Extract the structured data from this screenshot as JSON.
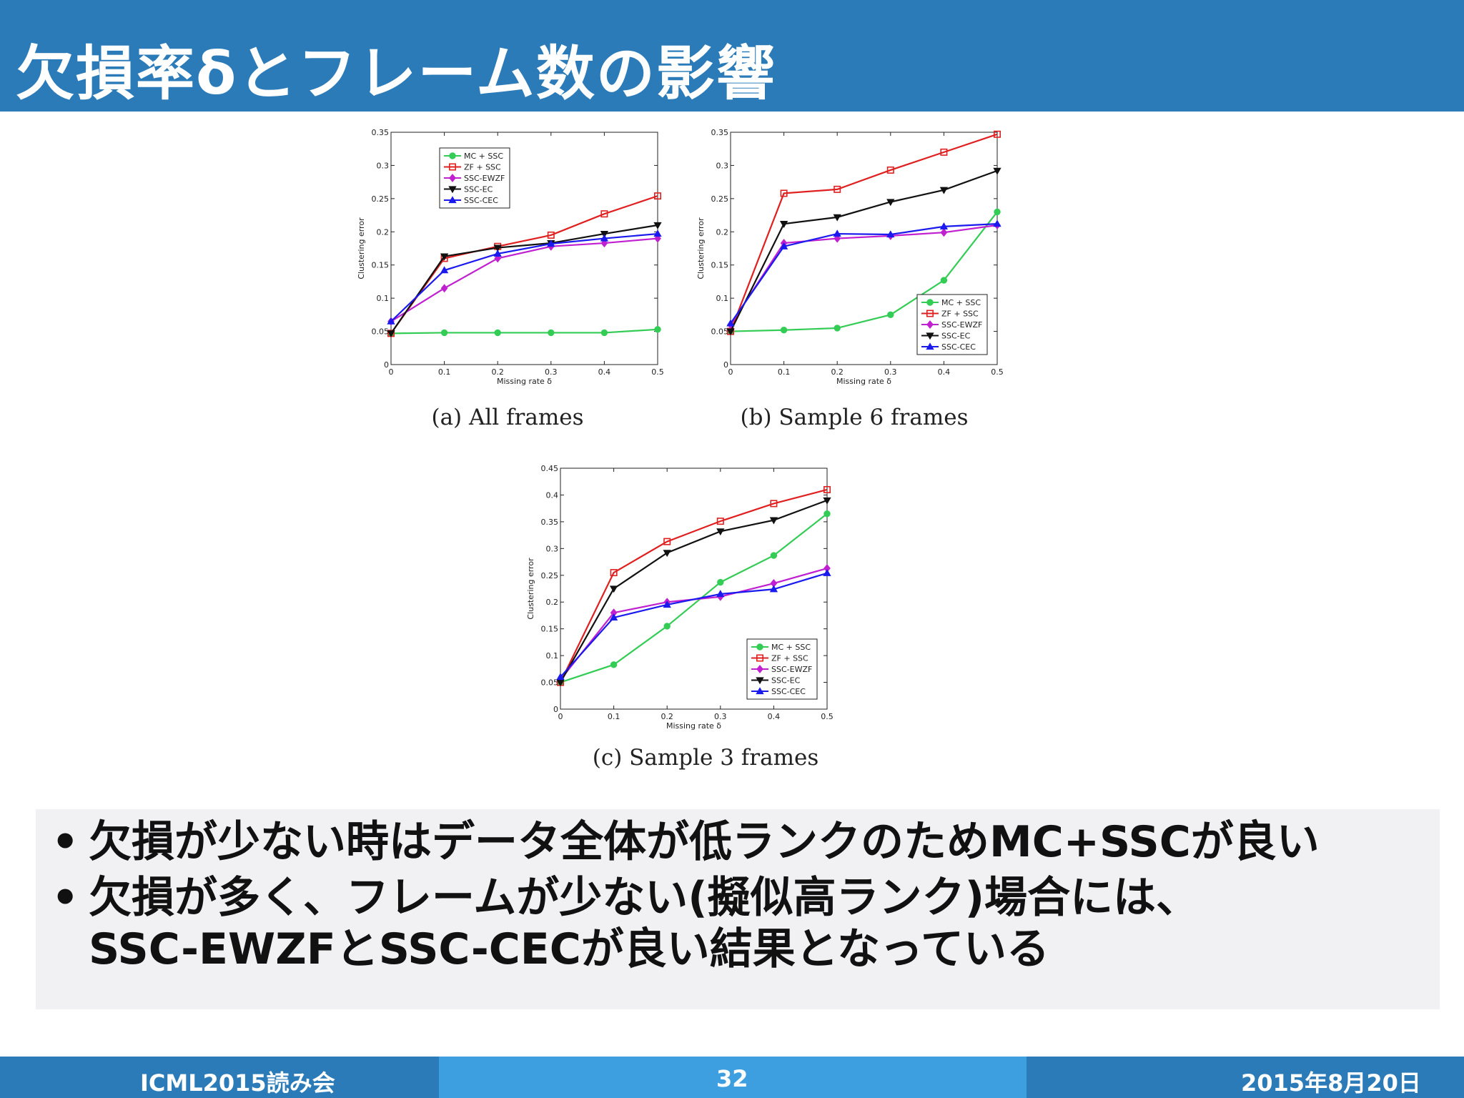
{
  "slide": {
    "title": "欠損率δとフレーム数の影響",
    "bullets": [
      "欠損が少ない時はデータ全体が低ランクのためMC+SSCが良い",
      "欠損が多く、フレームが少ない(擬似高ランク)場合には、"
    ],
    "bullet_continuation": "SSC-EWZFとSSC-CECが良い結果となっている",
    "bullet_marker": "•",
    "footer": {
      "left": "ICML2015読み会",
      "page": "32",
      "date": "2015年8月20日"
    }
  },
  "colors": {
    "title_bar": "#2b7bb9",
    "footer_mid": "#3d9ee0",
    "bullet_bg": "#f1f1f3"
  },
  "chart_data": [
    {
      "type": "line",
      "caption": "(a)  All frames",
      "xlabel": "Missing rate δ",
      "ylabel": "Clustering error",
      "x": [
        0,
        0.1,
        0.2,
        0.3,
        0.4,
        0.5
      ],
      "xticks": [
        "0",
        "0.1",
        "0.2",
        "0.3",
        "0.4",
        "0.5"
      ],
      "xlim": [
        0,
        0.5
      ],
      "ylim": [
        0,
        0.35
      ],
      "yticks": [
        "0",
        "0.05",
        "0.1",
        "0.15",
        "0.2",
        "0.25",
        "0.3",
        "0.35"
      ],
      "legend": "top-left",
      "series": [
        {
          "name": "MC + SSC",
          "color": "#33cc55",
          "marker": "circle",
          "values": [
            0.047,
            0.048,
            0.048,
            0.048,
            0.048,
            0.053
          ]
        },
        {
          "name": "ZF + SSC",
          "color": "#e02020",
          "marker": "square",
          "values": [
            0.047,
            0.16,
            0.178,
            0.195,
            0.227,
            0.254
          ]
        },
        {
          "name": "SSC-EWZF",
          "color": "#c020d0",
          "marker": "diamond",
          "values": [
            0.065,
            0.115,
            0.16,
            0.178,
            0.183,
            0.19
          ]
        },
        {
          "name": "SSC-EC",
          "color": "#111111",
          "marker": "triangle-down",
          "values": [
            0.047,
            0.163,
            0.176,
            0.183,
            0.197,
            0.21
          ]
        },
        {
          "name": "SSC-CEC",
          "color": "#1a1aee",
          "marker": "triangle-up",
          "values": [
            0.065,
            0.142,
            0.167,
            0.182,
            0.19,
            0.197
          ]
        }
      ]
    },
    {
      "type": "line",
      "caption": "(b)  Sample 6 frames",
      "xlabel": "Missing rate δ",
      "ylabel": "Clustering error",
      "x": [
        0,
        0.1,
        0.2,
        0.3,
        0.4,
        0.5
      ],
      "xticks": [
        "0",
        "0.1",
        "0.2",
        "0.3",
        "0.4",
        "0.5"
      ],
      "xlim": [
        0,
        0.5
      ],
      "ylim": [
        0,
        0.35
      ],
      "yticks": [
        "0",
        "0.05",
        "0.1",
        "0.15",
        "0.2",
        "0.25",
        "0.3",
        "0.35"
      ],
      "legend": "bottom-right",
      "series": [
        {
          "name": "MC + SSC",
          "color": "#33cc55",
          "marker": "circle",
          "values": [
            0.05,
            0.052,
            0.055,
            0.075,
            0.127,
            0.23
          ]
        },
        {
          "name": "ZF + SSC",
          "color": "#e02020",
          "marker": "square",
          "values": [
            0.05,
            0.258,
            0.264,
            0.293,
            0.32,
            0.347
          ]
        },
        {
          "name": "SSC-EWZF",
          "color": "#c020d0",
          "marker": "diamond",
          "values": [
            0.06,
            0.183,
            0.19,
            0.194,
            0.199,
            0.21
          ]
        },
        {
          "name": "SSC-EC",
          "color": "#111111",
          "marker": "triangle-down",
          "values": [
            0.05,
            0.212,
            0.222,
            0.245,
            0.263,
            0.292
          ]
        },
        {
          "name": "SSC-CEC",
          "color": "#1a1aee",
          "marker": "triangle-up",
          "values": [
            0.062,
            0.178,
            0.197,
            0.196,
            0.208,
            0.212
          ]
        }
      ]
    },
    {
      "type": "line",
      "caption": "(c)  Sample 3 frames",
      "xlabel": "Missing rate δ",
      "ylabel": "Clustering error",
      "x": [
        0,
        0.1,
        0.2,
        0.3,
        0.4,
        0.5
      ],
      "xticks": [
        "0",
        "0.1",
        "0.2",
        "0.3",
        "0.4",
        "0.5"
      ],
      "xlim": [
        0,
        0.5
      ],
      "ylim": [
        0,
        0.45
      ],
      "yticks": [
        "0",
        "0.05",
        "0.1",
        "0.15",
        "0.2",
        "0.25",
        "0.3",
        "0.35",
        "0.4",
        "0.45"
      ],
      "legend": "bottom-right",
      "series": [
        {
          "name": "MC + SSC",
          "color": "#33cc55",
          "marker": "circle",
          "values": [
            0.05,
            0.083,
            0.155,
            0.237,
            0.287,
            0.365
          ]
        },
        {
          "name": "ZF + SSC",
          "color": "#e02020",
          "marker": "square",
          "values": [
            0.05,
            0.255,
            0.313,
            0.351,
            0.384,
            0.41
          ]
        },
        {
          "name": "SSC-EWZF",
          "color": "#c020d0",
          "marker": "diamond",
          "values": [
            0.055,
            0.18,
            0.2,
            0.21,
            0.235,
            0.263
          ]
        },
        {
          "name": "SSC-EC",
          "color": "#111111",
          "marker": "triangle-down",
          "values": [
            0.05,
            0.225,
            0.292,
            0.332,
            0.353,
            0.39
          ]
        },
        {
          "name": "SSC-CEC",
          "color": "#1a1aee",
          "marker": "triangle-up",
          "values": [
            0.06,
            0.171,
            0.195,
            0.215,
            0.224,
            0.254
          ]
        }
      ]
    }
  ]
}
